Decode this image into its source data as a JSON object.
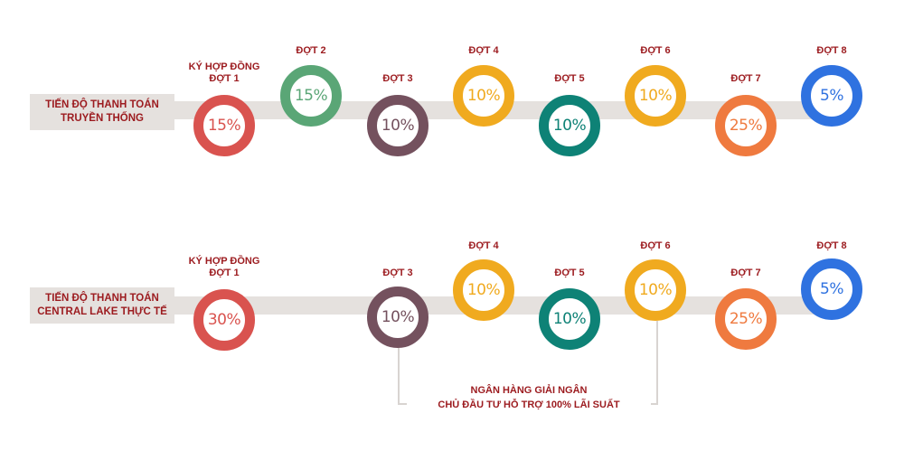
{
  "rows": [
    {
      "label_line1": "TIẾN ĐỘ THANH TOÁN",
      "label_line2": "TRUYỀN THỐNG",
      "stages": [
        {
          "label": "KÝ HỢP ĐỒNG\nĐỢT 1",
          "value": "15%",
          "color": "#d9534f"
        },
        {
          "label": "ĐỢT 2",
          "value": "15%",
          "color": "#5aa676"
        },
        {
          "label": "ĐỢT 3",
          "value": "10%",
          "color": "#74515e"
        },
        {
          "label": "ĐỢT 4",
          "value": "10%",
          "color": "#f0aa1f"
        },
        {
          "label": "ĐỢT 5",
          "value": "10%",
          "color": "#0e8276"
        },
        {
          "label": "ĐỢT 6",
          "value": "10%",
          "color": "#f0aa1f"
        },
        {
          "label": "ĐỢT 7",
          "value": "25%",
          "color": "#ef7a3f"
        },
        {
          "label": "ĐỢT 8",
          "value": "5%",
          "color": "#2f72e0"
        }
      ]
    },
    {
      "label_line1": "TIẾN ĐỘ THANH TOÁN",
      "label_line2": "CENTRAL LAKE THỰC TẾ",
      "stages": [
        {
          "label": "KÝ HỢP ĐỒNG\nĐỢT 1",
          "value": "30%",
          "color": "#d9534f"
        },
        {
          "label": "ĐỢT 3",
          "value": "10%",
          "color": "#74515e"
        },
        {
          "label": "ĐỢT 4",
          "value": "10%",
          "color": "#f0aa1f"
        },
        {
          "label": "ĐỢT 5",
          "value": "10%",
          "color": "#0e8276"
        },
        {
          "label": "ĐỢT 6",
          "value": "10%",
          "color": "#f0aa1f"
        },
        {
          "label": "ĐỢT 7",
          "value": "25%",
          "color": "#ef7a3f"
        },
        {
          "label": "ĐỢT 8",
          "value": "5%",
          "color": "#2f72e0"
        }
      ]
    }
  ],
  "bank_note": {
    "line1": "NGÂN HÀNG GIẢI NGÂN",
    "line2": "CHỦ ĐẦU TƯ HỖ TRỢ 100% LÃI SUẤT"
  }
}
